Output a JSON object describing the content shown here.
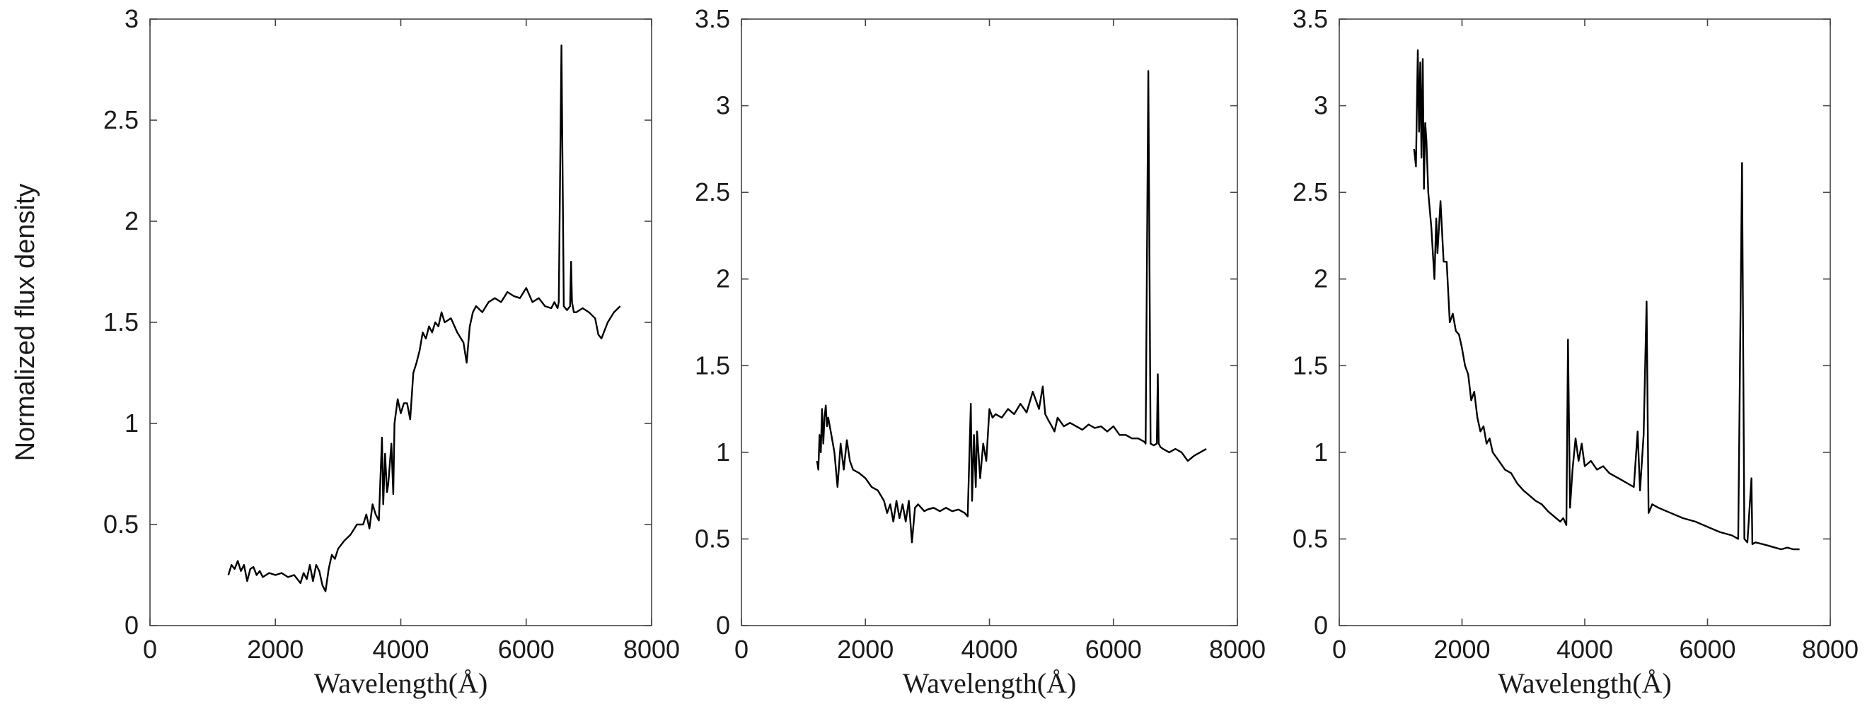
{
  "figure": {
    "ylabel": "Normalized flux density"
  },
  "chart_data": [
    {
      "type": "line",
      "xlabel": "Wavelength(Å)",
      "xlim": [
        0,
        8000
      ],
      "ylim": [
        0,
        3
      ],
      "xticks": [
        "0",
        "2000",
        "4000",
        "6000",
        "8000"
      ],
      "yticks": [
        "0",
        "0.5",
        "1",
        "1.5",
        "2",
        "2.5",
        "3"
      ],
      "series": [
        {
          "x": [
            1250,
            1300,
            1350,
            1400,
            1450,
            1500,
            1550,
            1600,
            1650,
            1700,
            1750,
            1800,
            1900,
            2000,
            2100,
            2200,
            2300,
            2400,
            2450,
            2500,
            2550,
            2600,
            2650,
            2700,
            2750,
            2800,
            2850,
            2900,
            2950,
            3000,
            3100,
            3200,
            3300,
            3400,
            3450,
            3500,
            3550,
            3600,
            3650,
            3700,
            3720,
            3750,
            3780,
            3800,
            3850,
            3880,
            3900,
            3950,
            4000,
            4050,
            4100,
            4150,
            4200,
            4250,
            4300,
            4350,
            4400,
            4450,
            4500,
            4550,
            4600,
            4650,
            4700,
            4800,
            4900,
            5000,
            5050,
            5100,
            5150,
            5200,
            5300,
            5400,
            5500,
            5600,
            5700,
            5800,
            5900,
            6000,
            6100,
            6200,
            6300,
            6400,
            6450,
            6500,
            6520,
            6563,
            6600,
            6650,
            6700,
            6716,
            6731,
            6760,
            6800,
            6900,
            7000,
            7100,
            7150,
            7200,
            7300,
            7400,
            7500
          ],
          "y": [
            0.25,
            0.3,
            0.28,
            0.32,
            0.27,
            0.3,
            0.22,
            0.28,
            0.29,
            0.25,
            0.27,
            0.24,
            0.26,
            0.25,
            0.26,
            0.24,
            0.25,
            0.21,
            0.26,
            0.23,
            0.3,
            0.22,
            0.3,
            0.27,
            0.2,
            0.17,
            0.28,
            0.35,
            0.33,
            0.38,
            0.42,
            0.45,
            0.5,
            0.5,
            0.55,
            0.48,
            0.6,
            0.55,
            0.52,
            0.93,
            0.6,
            0.85,
            0.66,
            0.7,
            0.9,
            0.65,
            1.0,
            1.12,
            1.05,
            1.1,
            1.1,
            1.02,
            1.25,
            1.3,
            1.36,
            1.45,
            1.42,
            1.48,
            1.45,
            1.5,
            1.48,
            1.55,
            1.5,
            1.52,
            1.45,
            1.4,
            1.3,
            1.48,
            1.55,
            1.58,
            1.55,
            1.6,
            1.62,
            1.6,
            1.65,
            1.63,
            1.62,
            1.67,
            1.6,
            1.62,
            1.58,
            1.57,
            1.6,
            1.57,
            1.6,
            2.87,
            1.58,
            1.56,
            1.58,
            1.8,
            1.6,
            1.55,
            1.55,
            1.57,
            1.55,
            1.52,
            1.44,
            1.42,
            1.5,
            1.55,
            1.58
          ]
        }
      ]
    },
    {
      "type": "line",
      "xlabel": "Wavelength(Å)",
      "xlim": [
        0,
        8000
      ],
      "ylim": [
        0,
        3.5
      ],
      "xticks": [
        "0",
        "2000",
        "4000",
        "6000",
        "8000"
      ],
      "yticks": [
        "0",
        "0.5",
        "1",
        "1.5",
        "2",
        "2.5",
        "3",
        "3.5"
      ],
      "series": [
        {
          "x": [
            1220,
            1240,
            1260,
            1280,
            1300,
            1320,
            1340,
            1360,
            1380,
            1400,
            1450,
            1500,
            1550,
            1600,
            1650,
            1700,
            1750,
            1800,
            1900,
            2000,
            2100,
            2200,
            2300,
            2350,
            2400,
            2450,
            2500,
            2550,
            2600,
            2650,
            2700,
            2750,
            2800,
            2850,
            2900,
            2950,
            3000,
            3100,
            3200,
            3300,
            3400,
            3500,
            3600,
            3650,
            3700,
            3720,
            3750,
            3780,
            3800,
            3850,
            3900,
            3950,
            4000,
            4050,
            4100,
            4200,
            4300,
            4400,
            4500,
            4600,
            4700,
            4800,
            4860,
            4900,
            4959,
            5007,
            5050,
            5100,
            5200,
            5300,
            5400,
            5500,
            5600,
            5700,
            5800,
            5900,
            6000,
            6100,
            6200,
            6300,
            6400,
            6500,
            6520,
            6563,
            6600,
            6650,
            6700,
            6716,
            6731,
            6760,
            6800,
            6900,
            7000,
            7100,
            7200,
            7300,
            7400,
            7500
          ],
          "y": [
            0.95,
            0.9,
            1.1,
            1.0,
            1.25,
            1.05,
            1.2,
            1.27,
            1.15,
            1.2,
            1.1,
            1.0,
            0.8,
            1.05,
            0.9,
            1.07,
            0.95,
            0.9,
            0.88,
            0.85,
            0.8,
            0.78,
            0.72,
            0.65,
            0.7,
            0.6,
            0.72,
            0.62,
            0.7,
            0.6,
            0.72,
            0.48,
            0.68,
            0.7,
            0.68,
            0.66,
            0.67,
            0.68,
            0.66,
            0.68,
            0.66,
            0.67,
            0.65,
            0.63,
            1.28,
            0.72,
            1.1,
            0.8,
            1.12,
            0.85,
            1.05,
            0.95,
            1.25,
            1.2,
            1.22,
            1.2,
            1.25,
            1.22,
            1.28,
            1.23,
            1.35,
            1.25,
            1.38,
            1.22,
            1.18,
            1.15,
            1.12,
            1.2,
            1.15,
            1.17,
            1.15,
            1.13,
            1.16,
            1.14,
            1.15,
            1.12,
            1.15,
            1.1,
            1.1,
            1.08,
            1.08,
            1.06,
            1.05,
            3.2,
            1.05,
            1.04,
            1.05,
            1.45,
            1.05,
            1.03,
            1.02,
            1.0,
            1.02,
            1.0,
            0.95,
            0.98,
            1.0,
            1.02
          ]
        }
      ]
    },
    {
      "type": "line",
      "xlabel": "Wavelength(Å)",
      "xlim": [
        0,
        8000
      ],
      "ylim": [
        0,
        3.5
      ],
      "xticks": [
        "0",
        "2000",
        "4000",
        "6000",
        "8000"
      ],
      "yticks": [
        "0",
        "0.5",
        "1",
        "1.5",
        "2",
        "2.5",
        "3",
        "3.5"
      ],
      "series": [
        {
          "x": [
            1220,
            1250,
            1280,
            1300,
            1320,
            1340,
            1360,
            1380,
            1400,
            1420,
            1450,
            1500,
            1550,
            1580,
            1600,
            1650,
            1700,
            1750,
            1800,
            1850,
            1900,
            1950,
            2000,
            2050,
            2100,
            2150,
            2200,
            2250,
            2300,
            2350,
            2400,
            2450,
            2500,
            2600,
            2700,
            2800,
            2900,
            3000,
            3100,
            3200,
            3300,
            3400,
            3500,
            3600,
            3650,
            3700,
            3727,
            3760,
            3800,
            3850,
            3900,
            3950,
            4000,
            4100,
            4200,
            4300,
            4400,
            4500,
            4600,
            4700,
            4800,
            4861,
            4900,
            4959,
            5007,
            5040,
            5100,
            5200,
            5400,
            5600,
            5800,
            6000,
            6200,
            6400,
            6500,
            6563,
            6600,
            6650,
            6716,
            6731,
            6780,
            6900,
            7000,
            7100,
            7200,
            7300,
            7400,
            7500
          ],
          "y": [
            2.75,
            2.65,
            3.32,
            2.85,
            3.25,
            2.7,
            3.27,
            2.52,
            2.9,
            2.8,
            2.5,
            2.3,
            2.0,
            2.35,
            2.15,
            2.45,
            2.1,
            2.1,
            1.75,
            1.8,
            1.7,
            1.68,
            1.6,
            1.5,
            1.45,
            1.3,
            1.35,
            1.2,
            1.12,
            1.15,
            1.05,
            1.08,
            1.0,
            0.95,
            0.9,
            0.88,
            0.82,
            0.78,
            0.75,
            0.72,
            0.7,
            0.66,
            0.63,
            0.6,
            0.62,
            0.58,
            1.65,
            0.68,
            0.9,
            1.08,
            0.95,
            1.05,
            0.92,
            0.95,
            0.9,
            0.92,
            0.88,
            0.86,
            0.84,
            0.82,
            0.8,
            1.12,
            0.78,
            1.1,
            1.87,
            0.65,
            0.7,
            0.68,
            0.65,
            0.62,
            0.6,
            0.57,
            0.54,
            0.52,
            0.5,
            2.67,
            0.5,
            0.48,
            0.85,
            0.47,
            0.48,
            0.47,
            0.46,
            0.45,
            0.44,
            0.45,
            0.44,
            0.44
          ]
        }
      ]
    }
  ]
}
